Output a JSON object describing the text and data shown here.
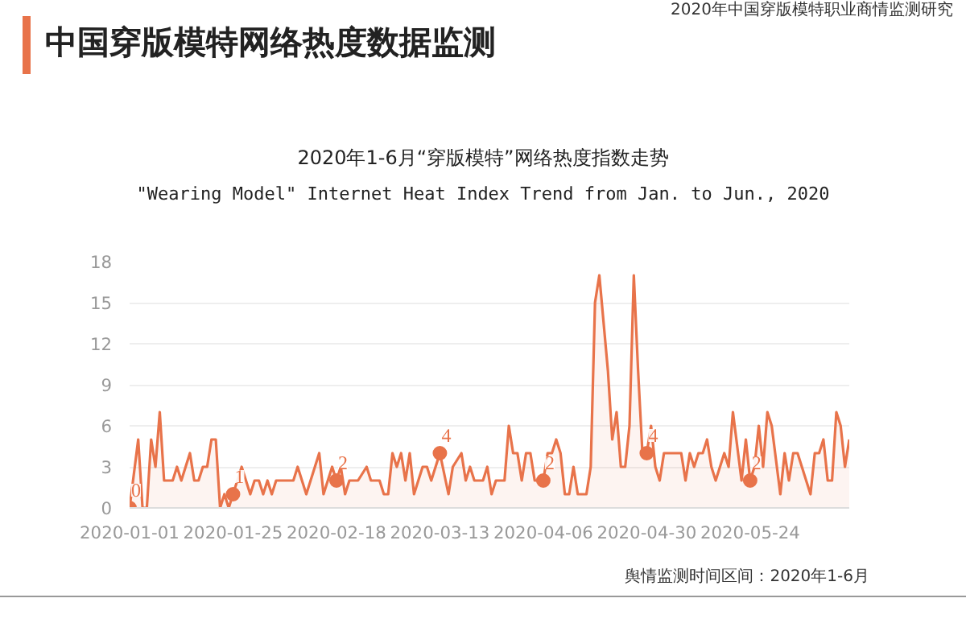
{
  "chart_data": {
    "type": "area",
    "title": "中国穿版模特网络热度数据监测",
    "subtitle": "2020年1-6月“穿版模特”网络热度指数走势",
    "annotations": [
      "2020年中国穿版模特职业商情监测研究",
      "\"Wearing Model\" Internet Heat Index Trend from Jan. to Jun., 2020",
      "舆情监测时间区间：2020年1-6月"
    ],
    "xlim": [
      "2020-01-01",
      "2020-06-16"
    ],
    "xticks": [
      "2020-01-01",
      "2020-01-25",
      "2020-02-18",
      "2020-03-13",
      "2020-04-06",
      "2020-04-30",
      "2020-05-24"
    ],
    "ylim": [
      0,
      18
    ],
    "yticks": [
      0,
      3,
      6,
      9,
      12,
      15,
      18
    ],
    "grid": "y",
    "series": [
      {
        "color": "#e8734a",
        "x": [
          "2020-01-01",
          "2020-01-03",
          "2020-01-04",
          "2020-01-05",
          "2020-01-06",
          "2020-01-07",
          "2020-01-08",
          "2020-01-09",
          "2020-01-11",
          "2020-01-12",
          "2020-01-13",
          "2020-01-15",
          "2020-01-16",
          "2020-01-17",
          "2020-01-18",
          "2020-01-19",
          "2020-01-20",
          "2020-01-21",
          "2020-01-22",
          "2020-01-23",
          "2020-01-24",
          "2020-01-25",
          "2020-01-27",
          "2020-01-29",
          "2020-01-30",
          "2020-01-31",
          "2020-02-01",
          "2020-02-02",
          "2020-02-03",
          "2020-02-04",
          "2020-02-08",
          "2020-02-09",
          "2020-02-11",
          "2020-02-12",
          "2020-02-14",
          "2020-02-15",
          "2020-02-17",
          "2020-02-18",
          "2020-02-19",
          "2020-02-20",
          "2020-02-21",
          "2020-02-23",
          "2020-02-25",
          "2020-02-26",
          "2020-02-28",
          "2020-02-29",
          "2020-03-01",
          "2020-03-02",
          "2020-03-03",
          "2020-03-04",
          "2020-03-05",
          "2020-03-06",
          "2020-03-07",
          "2020-03-09",
          "2020-03-10",
          "2020-03-11",
          "2020-03-13",
          "2020-03-15",
          "2020-03-16",
          "2020-03-18",
          "2020-03-19",
          "2020-03-20",
          "2020-03-21",
          "2020-03-23",
          "2020-03-24",
          "2020-03-25",
          "2020-03-26",
          "2020-03-28",
          "2020-03-29",
          "2020-03-30",
          "2020-03-31",
          "2020-04-01",
          "2020-04-02",
          "2020-04-03",
          "2020-04-04",
          "2020-04-06",
          "2020-04-07",
          "2020-04-08",
          "2020-04-09",
          "2020-04-10",
          "2020-04-11",
          "2020-04-12",
          "2020-04-13",
          "2020-04-14",
          "2020-04-16",
          "2020-04-17",
          "2020-04-18",
          "2020-04-19",
          "2020-04-21",
          "2020-04-22",
          "2020-04-23",
          "2020-04-24",
          "2020-04-25",
          "2020-04-26",
          "2020-04-27",
          "2020-04-28",
          "2020-04-29",
          "2020-04-30",
          "2020-05-01",
          "2020-05-02",
          "2020-05-03",
          "2020-05-04",
          "2020-05-06",
          "2020-05-08",
          "2020-05-09",
          "2020-05-10",
          "2020-05-11",
          "2020-05-12",
          "2020-05-13",
          "2020-05-14",
          "2020-05-15",
          "2020-05-16",
          "2020-05-18",
          "2020-05-19",
          "2020-05-20",
          "2020-05-22",
          "2020-05-23",
          "2020-05-24",
          "2020-05-25",
          "2020-05-26",
          "2020-05-27",
          "2020-05-28",
          "2020-05-29",
          "2020-05-31",
          "2020-06-01",
          "2020-06-02",
          "2020-06-03",
          "2020-06-04",
          "2020-06-05",
          "2020-06-07",
          "2020-06-08",
          "2020-06-09",
          "2020-06-10",
          "2020-06-11",
          "2020-06-12",
          "2020-06-13",
          "2020-06-14",
          "2020-06-15",
          "2020-06-16"
        ],
        "values": [
          0,
          5,
          0,
          0,
          5,
          3,
          7,
          2,
          2,
          3,
          2,
          4,
          2,
          2,
          3,
          3,
          5,
          5,
          0,
          1,
          0,
          1,
          3,
          1,
          2,
          2,
          1,
          2,
          1,
          2,
          2,
          3,
          1,
          2,
          4,
          1,
          3,
          2,
          3,
          1,
          2,
          2,
          3,
          2,
          2,
          1,
          1,
          4,
          3,
          4,
          2,
          4,
          1,
          3,
          3,
          2,
          4,
          1,
          3,
          4,
          2,
          3,
          2,
          2,
          3,
          1,
          2,
          2,
          6,
          4,
          4,
          2,
          4,
          4,
          2,
          2,
          4,
          4,
          5,
          4,
          1,
          1,
          3,
          1,
          1,
          3,
          15,
          17,
          10,
          5,
          7,
          3,
          3,
          6,
          17,
          10,
          4,
          4,
          6,
          3,
          2,
          4,
          4,
          4,
          2,
          4,
          3,
          4,
          4,
          5,
          3,
          2,
          4,
          3,
          7,
          2,
          5,
          2,
          3,
          6,
          3,
          7,
          6,
          1,
          4,
          2,
          4,
          4,
          3,
          1,
          4,
          4,
          5,
          2,
          2,
          7,
          6,
          3,
          5
        ]
      },
      {
        "type": "scatter",
        "color": "#e8734a",
        "x": [
          "2020-01-01",
          "2020-01-25",
          "2020-02-18",
          "2020-03-13",
          "2020-04-06",
          "2020-04-30",
          "2020-05-24"
        ],
        "values": [
          0,
          1,
          2,
          4,
          2,
          4,
          2
        ],
        "value_labels": [
          "0",
          "1",
          "2",
          "4",
          "2",
          "4",
          "2"
        ]
      }
    ]
  }
}
